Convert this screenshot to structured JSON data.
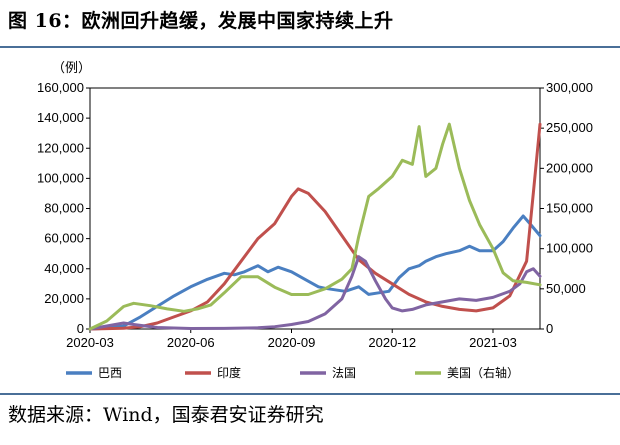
{
  "title": "图 16：欧洲回升趋缓，发展中国家持续上升",
  "source": "数据来源：Wind，国泰君安证券研究",
  "chart_data": {
    "type": "line",
    "unit_label": "（例）",
    "y_left": {
      "ylim": [
        0,
        160000
      ],
      "ticks": [
        "0",
        "20,000",
        "40,000",
        "60,000",
        "80,000",
        "100,000",
        "120,000",
        "140,000",
        "160,000"
      ]
    },
    "y_right": {
      "ylim": [
        0,
        300000
      ],
      "ticks": [
        "0",
        "50,000",
        "100,000",
        "150,000",
        "200,000",
        "250,000",
        "300,000"
      ]
    },
    "x_ticks": [
      "2020-03",
      "2020-06",
      "2020-09",
      "2020-12",
      "2021-03"
    ],
    "x_tick_positions": [
      0,
      3,
      6,
      9,
      12
    ],
    "xlim": [
      0,
      13.4
    ],
    "legend_position": "bottom",
    "grid": false,
    "series": [
      {
        "name": "巴西",
        "axis": "left",
        "color": "#4a7fc1",
        "x": [
          0,
          0.5,
          1,
          1.5,
          2,
          2.5,
          3,
          3.5,
          4,
          4.3,
          4.6,
          5,
          5.3,
          5.6,
          6,
          6.4,
          6.8,
          7,
          7.3,
          7.6,
          8,
          8.3,
          8.6,
          8.9,
          9.2,
          9.5,
          9.8,
          10,
          10.3,
          10.6,
          11,
          11.3,
          11.6,
          12,
          12.3,
          12.6,
          12.9,
          13.1,
          13.4
        ],
        "y": [
          0,
          500,
          2000,
          8000,
          15000,
          22000,
          28000,
          33000,
          37000,
          36000,
          38000,
          42000,
          38000,
          41000,
          38000,
          33000,
          28000,
          27000,
          26000,
          25000,
          28000,
          23000,
          24000,
          25000,
          34000,
          40000,
          42000,
          45000,
          48000,
          50000,
          52000,
          55000,
          52000,
          52000,
          58000,
          67000,
          75000,
          70000,
          62000
        ]
      },
      {
        "name": "印度",
        "axis": "left",
        "color": "#c0504d",
        "x": [
          0,
          1,
          1.5,
          2,
          2.5,
          3,
          3.5,
          4,
          4.5,
          5,
          5.5,
          6,
          6.2,
          6.5,
          7,
          7.5,
          8,
          8.5,
          9,
          9.5,
          10,
          10.5,
          11,
          11.5,
          12,
          12.5,
          13,
          13.2,
          13.4
        ],
        "y": [
          0,
          500,
          1500,
          4000,
          8000,
          12000,
          18000,
          30000,
          45000,
          60000,
          70000,
          88000,
          93000,
          90000,
          78000,
          62000,
          46000,
          37000,
          30000,
          23000,
          18000,
          15000,
          13000,
          12000,
          14000,
          22000,
          45000,
          90000,
          136000
        ]
      },
      {
        "name": "法国",
        "axis": "left",
        "color": "#8064a2",
        "x": [
          0,
          0.5,
          1,
          1.3,
          2,
          3,
          4,
          5,
          5.5,
          6,
          6.5,
          7,
          7.5,
          7.8,
          8,
          8.2,
          8.5,
          8.8,
          9,
          9.3,
          9.6,
          10,
          10.5,
          11,
          11.5,
          12,
          12.5,
          12.8,
          13,
          13.2,
          13.4
        ],
        "y": [
          0,
          2000,
          4000,
          3000,
          1000,
          300,
          400,
          800,
          1500,
          3000,
          5000,
          10000,
          20000,
          35000,
          48000,
          45000,
          32000,
          20000,
          14000,
          12000,
          13000,
          16000,
          18000,
          20000,
          19000,
          21000,
          25000,
          30000,
          38000,
          40000,
          35000
        ]
      },
      {
        "name": "美国（右轴）",
        "axis": "right",
        "color": "#9bbb59",
        "x": [
          0,
          0.5,
          1,
          1.3,
          1.8,
          2.3,
          2.8,
          3.2,
          3.6,
          4,
          4.5,
          5,
          5.5,
          6,
          6.5,
          7,
          7.5,
          7.8,
          8,
          8.3,
          8.6,
          9,
          9.3,
          9.6,
          9.8,
          10,
          10.3,
          10.5,
          10.7,
          11,
          11.3,
          11.6,
          12,
          12.3,
          12.6,
          13,
          13.4
        ],
        "y": [
          0,
          10000,
          28000,
          32000,
          29000,
          25000,
          22000,
          25000,
          30000,
          45000,
          65000,
          65000,
          52000,
          43000,
          43000,
          50000,
          62000,
          75000,
          115000,
          165000,
          175000,
          190000,
          210000,
          205000,
          252000,
          190000,
          200000,
          230000,
          255000,
          200000,
          160000,
          130000,
          100000,
          70000,
          60000,
          58000,
          55000
        ]
      }
    ]
  }
}
